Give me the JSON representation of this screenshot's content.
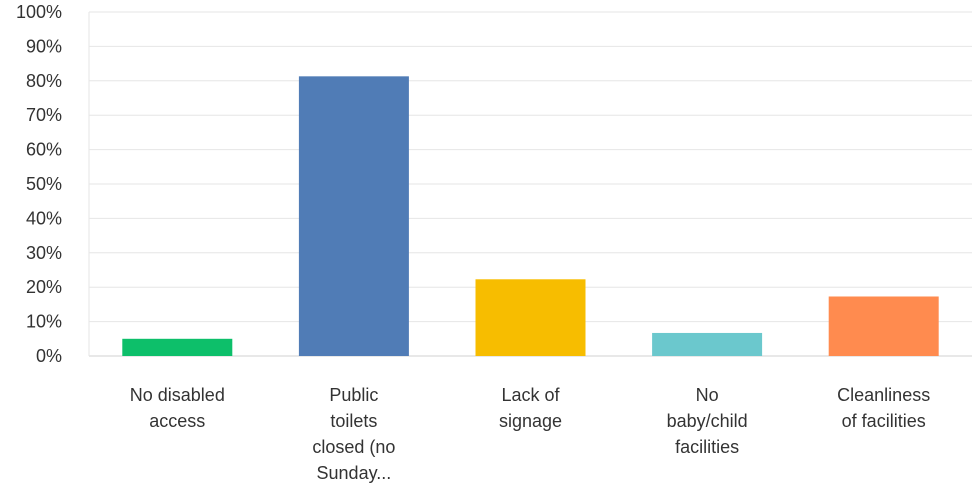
{
  "chart_data": {
    "type": "bar",
    "title": "",
    "xlabel": "",
    "ylabel": "",
    "ylim": [
      0,
      100
    ],
    "y_ticks": [
      "0%",
      "10%",
      "20%",
      "30%",
      "40%",
      "50%",
      "60%",
      "70%",
      "80%",
      "90%",
      "100%"
    ],
    "y_tick_values": [
      0,
      10,
      20,
      30,
      40,
      50,
      60,
      70,
      80,
      90,
      100
    ],
    "grid": true,
    "legend": "none",
    "categories": [
      "No disabled access",
      "Public toilets closed (no Sunday...",
      "Lack of signage",
      "No baby/child facilities",
      "Cleanliness of facilities"
    ],
    "category_lines": [
      [
        "No disabled",
        "access"
      ],
      [
        "Public",
        "toilets",
        "closed (no",
        "Sunday..."
      ],
      [
        "Lack of",
        "signage"
      ],
      [
        "No",
        "baby/child",
        "facilities"
      ],
      [
        "Cleanliness",
        "of facilities"
      ]
    ],
    "values": [
      5,
      81.3,
      22.3,
      6.7,
      17.3
    ],
    "colors": [
      "#0dbf6a",
      "#507cb6",
      "#f7bd00",
      "#6bc8cd",
      "#ff8b4f"
    ],
    "grid_color": "#e6e6e6",
    "axis_color": "#d0d0d0"
  }
}
